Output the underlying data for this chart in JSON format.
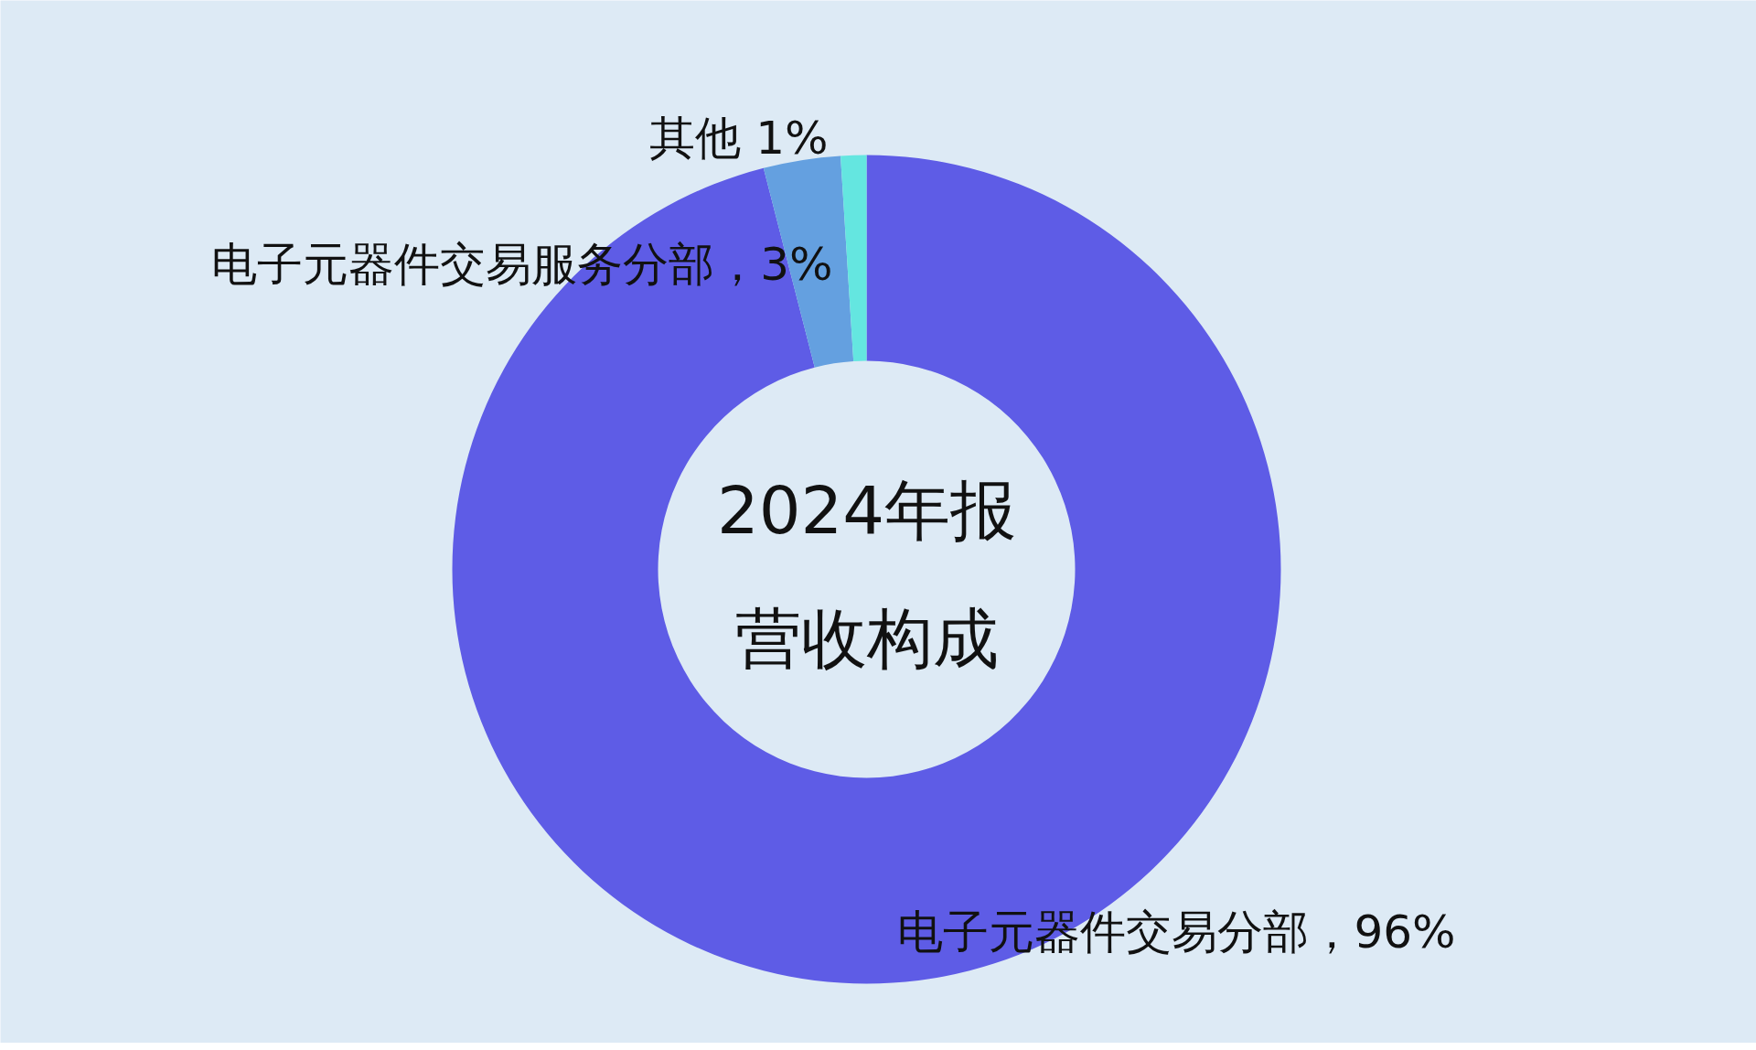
{
  "chart_data": {
    "type": "donut",
    "title": "2024年报",
    "subtitle": "营收构成",
    "categories": [
      "电子元器件交易分部",
      "电子元器件交易服务分部",
      "其他"
    ],
    "values": [
      96,
      3,
      1
    ],
    "value_labels": [
      "，96%",
      "，3%",
      " 1%"
    ],
    "colors": [
      "#5e5ce6",
      "#64a0e0",
      "#64e6e0"
    ],
    "legend": false
  }
}
